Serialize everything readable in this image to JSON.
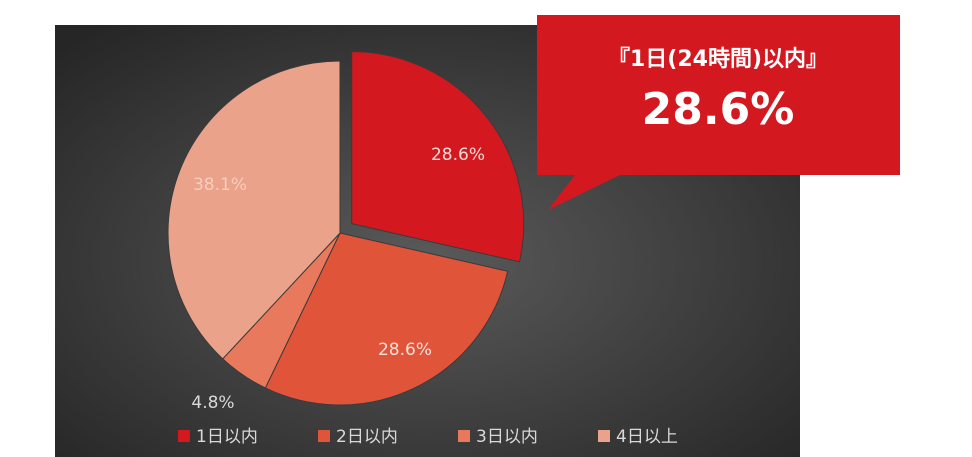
{
  "chart_data": {
    "type": "pie",
    "categories": [
      "1日以内",
      "2日以内",
      "3日以内",
      "4日以上"
    ],
    "values": [
      28.6,
      28.6,
      4.8,
      38.1
    ],
    "value_labels": [
      "28.6%",
      "28.6%",
      "4.8%",
      "38.1%"
    ],
    "colors": [
      "#d4181f",
      "#e0553a",
      "#e8795c",
      "#eba28b"
    ],
    "exploded": [
      0
    ],
    "legend": "bottom",
    "annotation": {
      "title": "『1日(24時間)以内』",
      "value": "28.6%"
    }
  }
}
